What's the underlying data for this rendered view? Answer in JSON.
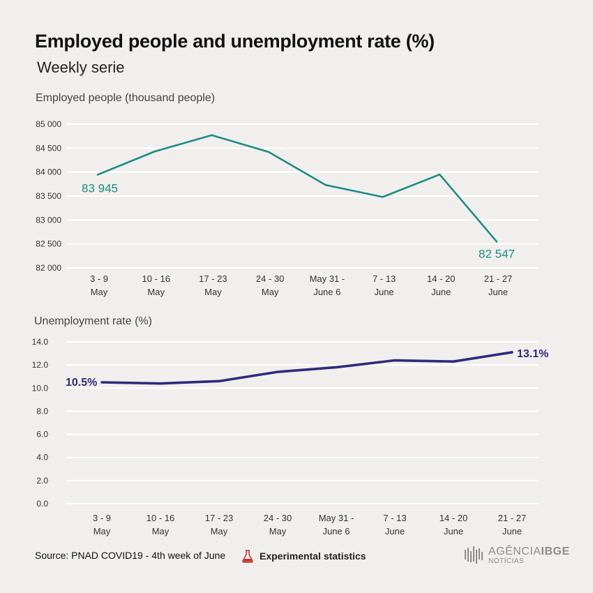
{
  "title": "Employed people and unemployment rate (%)",
  "subtitle": "Weekly serie",
  "footer": {
    "source": "Source: PNAD COVID19 - 4th week of June",
    "experimental": "Experimental statistics",
    "logo_main": "AGÊNCIA",
    "logo_brand": "IBGE",
    "logo_sub": "NOTÍCIAS",
    "experimental_icon": "flask-icon",
    "logo_icon": "ibge-barcode-icon"
  },
  "chart_data": [
    {
      "type": "line",
      "ylabel": "Employed people (thousand people)",
      "categories": [
        [
          "3 - 9",
          "May"
        ],
        [
          "10 - 16",
          "May"
        ],
        [
          "17 - 23",
          "May"
        ],
        [
          "24 - 30",
          "May"
        ],
        [
          "May 31 -",
          "June 6"
        ],
        [
          "7 - 13",
          "June"
        ],
        [
          "14 - 20",
          "June"
        ],
        [
          "21 - 27",
          "June"
        ]
      ],
      "ylim": [
        82000,
        85000
      ],
      "yticks": [
        82000,
        82500,
        83000,
        83500,
        84000,
        84500,
        85000
      ],
      "ytick_labels": [
        "82 000",
        "82 500",
        "83 000",
        "83 500",
        "84 000",
        "84 500",
        "85 000"
      ],
      "grid": true,
      "series": [
        {
          "color": "#1e8c7e",
          "values": [
            83945,
            84430,
            84770,
            84420,
            83730,
            83480,
            83950,
            82547
          ]
        }
      ],
      "annotations": [
        {
          "index": 0,
          "text": "83 945"
        },
        {
          "index": 7,
          "text": "82 547"
        }
      ]
    },
    {
      "type": "line",
      "ylabel": "Unemployment rate (%)",
      "categories": [
        [
          "3 - 9",
          "May"
        ],
        [
          "10 - 16",
          "May"
        ],
        [
          "17 - 23",
          "May"
        ],
        [
          "24 - 30",
          "May"
        ],
        [
          "May 31 -",
          "June 6"
        ],
        [
          "7 - 13",
          "June"
        ],
        [
          "14 - 20",
          "June"
        ],
        [
          "21 - 27",
          "June"
        ]
      ],
      "ylim": [
        0,
        14
      ],
      "yticks": [
        0,
        2,
        4,
        6,
        8,
        10,
        12,
        14
      ],
      "ytick_labels": [
        "0.0",
        "2.0",
        "4.0",
        "6.0",
        "8.0",
        "10.0",
        "12.0",
        "14.0"
      ],
      "grid": true,
      "series": [
        {
          "color": "#2f2a7c",
          "values": [
            10.5,
            10.4,
            10.6,
            11.4,
            11.8,
            12.4,
            12.3,
            13.1
          ]
        }
      ],
      "annotations": [
        {
          "index": 0,
          "text": "10.5%"
        },
        {
          "index": 7,
          "text": "13.1%"
        }
      ]
    }
  ]
}
